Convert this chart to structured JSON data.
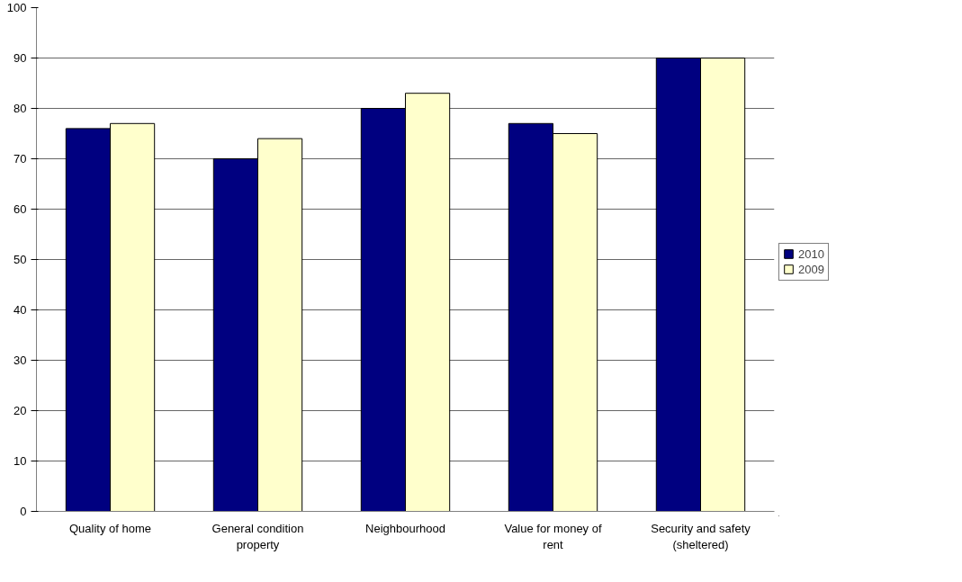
{
  "chart_data": {
    "type": "bar",
    "categories": [
      "Quality of home",
      "General condition property",
      "Neighbourhood",
      "Value for money of rent",
      "Security and safety (sheltered)"
    ],
    "series": [
      {
        "name": "2010",
        "color": "#000080",
        "values": [
          76,
          70,
          80,
          77,
          90
        ]
      },
      {
        "name": "2009",
        "color": "#ffffcc",
        "values": [
          77,
          74,
          83,
          75,
          90
        ]
      }
    ],
    "ylim": [
      0,
      100
    ],
    "yticks": [
      0,
      10,
      20,
      30,
      40,
      50,
      60,
      70,
      80,
      90,
      100
    ],
    "grid": "y",
    "legend": "right"
  }
}
